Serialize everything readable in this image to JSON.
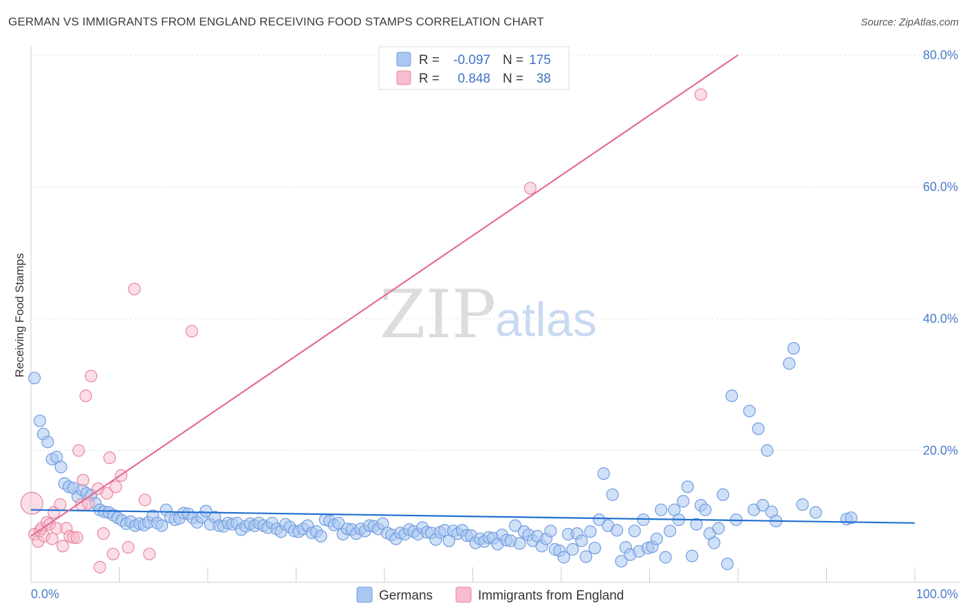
{
  "title": "GERMAN VS IMMIGRANTS FROM ENGLAND RECEIVING FOOD STAMPS CORRELATION CHART",
  "source": "Source: ZipAtlas.com",
  "watermark": {
    "zip": "ZIP",
    "atlas": "atlas"
  },
  "legend": {
    "rows": [
      {
        "r_label": "R =",
        "r_value": "-0.097",
        "n_label": "N =",
        "n_value": "175",
        "color": "#a9c7f0",
        "stroke": "#6f9ce0"
      },
      {
        "r_label": "R =",
        "r_value": "0.848",
        "n_label": "N =",
        "n_value": "38",
        "color": "#f7bccd",
        "stroke": "#e8859f"
      }
    ]
  },
  "bottom_legend": [
    "Germans",
    "Immigrants from England"
  ],
  "chart_data": {
    "type": "scatter",
    "title": "GERMAN VS IMMIGRANTS FROM ENGLAND RECEIVING FOOD STAMPS CORRELATION CHART",
    "xlabel": "",
    "ylabel": "Receiving Food Stamps",
    "xlim": [
      0,
      100
    ],
    "ylim": [
      0,
      80
    ],
    "x_tick_labels": [
      "0.0%",
      "100.0%"
    ],
    "y_ticks": [
      20,
      40,
      60,
      80
    ],
    "y_tick_labels": [
      "20.0%",
      "40.0%",
      "60.0%",
      "80.0%"
    ],
    "colors": {
      "germans": "#6f9ce0",
      "germans_fill": "#a9c7f0",
      "england": "#e8859f",
      "england_fill": "#f7bccd",
      "germans_line": "#1f6fcf",
      "england_line": "#e46a93"
    },
    "series": [
      {
        "name": "Germans",
        "trend": {
          "x": [
            0,
            100
          ],
          "y": [
            11.0,
            9.0
          ]
        },
        "points": [
          [
            0.4,
            31
          ],
          [
            1,
            24.5
          ],
          [
            1.4,
            22.5
          ],
          [
            1.9,
            21.3
          ],
          [
            2.4,
            18.7
          ],
          [
            2.9,
            19
          ],
          [
            3.4,
            17.5
          ],
          [
            3.8,
            15
          ],
          [
            4.3,
            14.5
          ],
          [
            4.8,
            14.3
          ],
          [
            5.3,
            13
          ],
          [
            5.8,
            14
          ],
          [
            6.3,
            13.5
          ],
          [
            6.8,
            13.2
          ],
          [
            7.3,
            12
          ],
          [
            7.8,
            11
          ],
          [
            8.3,
            10.7
          ],
          [
            8.8,
            10.6
          ],
          [
            9.3,
            10.2
          ],
          [
            9.8,
            9.8
          ],
          [
            10.3,
            9.4
          ],
          [
            10.8,
            8.9
          ],
          [
            11.3,
            9.2
          ],
          [
            11.8,
            8.6
          ],
          [
            12.3,
            8.9
          ],
          [
            12.8,
            8.7
          ],
          [
            13.3,
            9.1
          ],
          [
            13.8,
            10.1
          ],
          [
            14.3,
            9.0
          ],
          [
            14.8,
            8.6
          ],
          [
            15.3,
            11
          ],
          [
            15.8,
            9.9
          ],
          [
            16.3,
            9.5
          ],
          [
            16.8,
            9.7
          ],
          [
            17.3,
            10.5
          ],
          [
            17.8,
            10.4
          ],
          [
            18.3,
            9.8
          ],
          [
            18.8,
            9.1
          ],
          [
            19.3,
            9.9
          ],
          [
            19.8,
            10.8
          ],
          [
            20.3,
            8.8
          ],
          [
            20.8,
            9.9
          ],
          [
            21.3,
            8.6
          ],
          [
            21.8,
            8.5
          ],
          [
            22.3,
            9.0
          ],
          [
            22.8,
            8.8
          ],
          [
            23.3,
            9.0
          ],
          [
            23.8,
            8.0
          ],
          [
            24.3,
            8.5
          ],
          [
            24.8,
            8.9
          ],
          [
            25.3,
            8.6
          ],
          [
            25.8,
            9.0
          ],
          [
            26.3,
            8.6
          ],
          [
            26.8,
            8.3
          ],
          [
            27.3,
            9.0
          ],
          [
            27.8,
            8.1
          ],
          [
            28.3,
            7.7
          ],
          [
            28.8,
            8.8
          ],
          [
            29.3,
            8.4
          ],
          [
            29.8,
            7.8
          ],
          [
            30.3,
            7.7
          ],
          [
            30.8,
            8.1
          ],
          [
            31.3,
            8.6
          ],
          [
            31.8,
            7.5
          ],
          [
            32.3,
            7.7
          ],
          [
            32.8,
            7.0
          ],
          [
            33.3,
            9.5
          ],
          [
            33.8,
            9.3
          ],
          [
            34.3,
            8.7
          ],
          [
            34.8,
            9.0
          ],
          [
            35.3,
            7.3
          ],
          [
            35.8,
            8.1
          ],
          [
            36.3,
            8.0
          ],
          [
            36.8,
            7.4
          ],
          [
            37.3,
            8.1
          ],
          [
            37.8,
            7.8
          ],
          [
            38.3,
            8.6
          ],
          [
            38.8,
            8.5
          ],
          [
            39.3,
            8.1
          ],
          [
            39.8,
            8.9
          ],
          [
            40.3,
            7.5
          ],
          [
            40.8,
            7.2
          ],
          [
            41.3,
            6.6
          ],
          [
            41.8,
            7.5
          ],
          [
            42.3,
            7.3
          ],
          [
            42.8,
            8.0
          ],
          [
            43.3,
            7.7
          ],
          [
            43.8,
            7.3
          ],
          [
            44.3,
            8.3
          ],
          [
            44.8,
            7.6
          ],
          [
            45.3,
            7.5
          ],
          [
            45.8,
            6.5
          ],
          [
            46.3,
            7.6
          ],
          [
            46.8,
            7.9
          ],
          [
            47.3,
            6.3
          ],
          [
            47.8,
            7.8
          ],
          [
            48.3,
            7.4
          ],
          [
            48.8,
            7.9
          ],
          [
            49.3,
            7.1
          ],
          [
            49.8,
            7.1
          ],
          [
            50.3,
            6.0
          ],
          [
            50.8,
            6.6
          ],
          [
            51.3,
            6.2
          ],
          [
            51.8,
            6.8
          ],
          [
            52.3,
            6.7
          ],
          [
            52.8,
            5.8
          ],
          [
            53.3,
            7.2
          ],
          [
            53.8,
            6.4
          ],
          [
            54.3,
            6.3
          ],
          [
            54.8,
            8.6
          ],
          [
            55.3,
            5.9
          ],
          [
            55.8,
            7.7
          ],
          [
            56.3,
            7.2
          ],
          [
            56.8,
            6.3
          ],
          [
            57.3,
            7.0
          ],
          [
            57.8,
            5.5
          ],
          [
            58.3,
            6.6
          ],
          [
            58.8,
            7.8
          ],
          [
            59.3,
            5.0
          ],
          [
            59.8,
            4.8
          ],
          [
            60.3,
            3.8
          ],
          [
            60.8,
            7.3
          ],
          [
            61.3,
            5.0
          ],
          [
            61.8,
            7.4
          ],
          [
            62.3,
            6.3
          ],
          [
            62.8,
            3.9
          ],
          [
            63.3,
            7.7
          ],
          [
            63.8,
            5.2
          ],
          [
            64.3,
            9.5
          ],
          [
            64.8,
            16.5
          ],
          [
            65.3,
            8.6
          ],
          [
            65.8,
            13.3
          ],
          [
            66.3,
            7.9
          ],
          [
            66.8,
            3.2
          ],
          [
            67.3,
            5.3
          ],
          [
            67.8,
            4.2
          ],
          [
            68.3,
            7.8
          ],
          [
            68.8,
            4.7
          ],
          [
            69.3,
            9.5
          ],
          [
            69.8,
            5.2
          ],
          [
            70.3,
            5.4
          ],
          [
            70.8,
            6.6
          ],
          [
            71.3,
            11
          ],
          [
            71.8,
            3.8
          ],
          [
            72.3,
            7.8
          ],
          [
            72.8,
            11
          ],
          [
            73.3,
            9.5
          ],
          [
            73.8,
            12.3
          ],
          [
            74.3,
            14.5
          ],
          [
            74.8,
            4.0
          ],
          [
            75.3,
            8.8
          ],
          [
            75.8,
            11.7
          ],
          [
            76.3,
            11.0
          ],
          [
            76.8,
            7.4
          ],
          [
            77.3,
            6.0
          ],
          [
            77.8,
            8.2
          ],
          [
            78.3,
            13.3
          ],
          [
            78.8,
            2.8
          ],
          [
            79.3,
            28.3
          ],
          [
            79.8,
            9.5
          ],
          [
            81.3,
            26.0
          ],
          [
            81.8,
            11.0
          ],
          [
            82.3,
            23.3
          ],
          [
            82.8,
            11.7
          ],
          [
            83.3,
            20.0
          ],
          [
            83.8,
            10.7
          ],
          [
            84.3,
            9.3
          ],
          [
            85.8,
            33.2
          ],
          [
            86.3,
            35.5
          ],
          [
            87.3,
            11.8
          ],
          [
            88.8,
            10.6
          ],
          [
            92.3,
            9.6
          ],
          [
            92.8,
            9.8
          ]
        ]
      },
      {
        "name": "Immigrants from England",
        "trend": {
          "x": [
            0,
            80
          ],
          "y": [
            7.0,
            80
          ]
        },
        "points": [
          [
            0.1,
            12
          ],
          [
            0.4,
            7.3
          ],
          [
            0.8,
            6.2
          ],
          [
            1.0,
            7.8
          ],
          [
            1.2,
            8.2
          ],
          [
            1.5,
            7.0
          ],
          [
            1.8,
            9.1
          ],
          [
            2.1,
            8.8
          ],
          [
            2.4,
            6.6
          ],
          [
            2.6,
            10.6
          ],
          [
            2.9,
            8.2
          ],
          [
            3.3,
            11.8
          ],
          [
            3.6,
            5.5
          ],
          [
            4.0,
            8.2
          ],
          [
            4.4,
            7.0
          ],
          [
            4.8,
            6.8
          ],
          [
            5.2,
            6.8
          ],
          [
            5.4,
            20
          ],
          [
            5.7,
            11.8
          ],
          [
            5.9,
            15.5
          ],
          [
            6.2,
            28.3
          ],
          [
            6.5,
            12
          ],
          [
            6.8,
            31.3
          ],
          [
            7.6,
            14.2
          ],
          [
            7.8,
            2.3
          ],
          [
            8.2,
            7.4
          ],
          [
            8.6,
            13.5
          ],
          [
            8.9,
            18.9
          ],
          [
            9.3,
            4.3
          ],
          [
            9.6,
            14.5
          ],
          [
            10.2,
            16.2
          ],
          [
            11.0,
            5.3
          ],
          [
            11.7,
            44.5
          ],
          [
            12.9,
            12.5
          ],
          [
            13.4,
            4.3
          ],
          [
            18.2,
            38.1
          ],
          [
            56.5,
            59.8
          ],
          [
            75.8,
            74.0
          ]
        ]
      }
    ]
  }
}
